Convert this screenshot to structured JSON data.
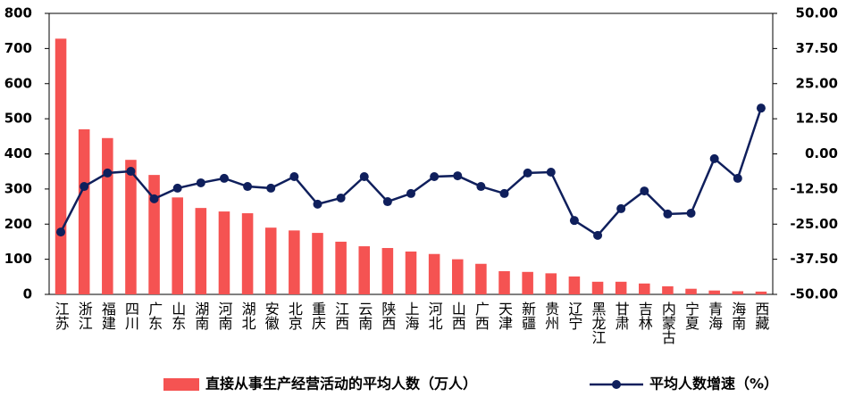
{
  "chart_data": {
    "type": "combo",
    "categories": [
      "江苏",
      "浙江",
      "福建",
      "四川",
      "广东",
      "山东",
      "湖南",
      "河南",
      "湖北",
      "安徽",
      "北京",
      "重庆",
      "江西",
      "云南",
      "陕西",
      "上海",
      "河北",
      "山西",
      "广西",
      "天津",
      "新疆",
      "贵州",
      "辽宁",
      "黑龙江",
      "甘肃",
      "吉林",
      "内蒙古",
      "宁夏",
      "青海",
      "海南",
      "西藏"
    ],
    "series": [
      {
        "name": "直接从事生产经营活动的平均人数（万人）",
        "type": "bar",
        "color": "#f55352",
        "values": [
          728,
          470,
          445,
          383,
          340,
          276,
          246,
          236,
          231,
          190,
          182,
          175,
          150,
          137,
          132,
          122,
          115,
          100,
          87,
          66,
          64,
          60,
          51,
          36,
          36,
          31,
          23,
          16,
          11,
          9,
          8
        ]
      },
      {
        "name": "平均人数增速（%）",
        "type": "line",
        "axis": "y2",
        "color": "#0f1f5c",
        "values": [
          -27.8,
          -11.6,
          -6.8,
          -6.2,
          -16.0,
          -12.2,
          -10.3,
          -8.7,
          -11.6,
          -12.2,
          -8.1,
          -17.9,
          -15.7,
          -8.1,
          -17.0,
          -14.1,
          -8.1,
          -7.8,
          -11.6,
          -14.1,
          -6.8,
          -6.5,
          -23.7,
          -29.0,
          -19.5,
          -13.2,
          -21.4,
          -21.1,
          -1.7,
          -8.7,
          16.3
        ]
      }
    ],
    "ylim": [
      0,
      800
    ],
    "yticks": [
      0,
      100,
      200,
      300,
      400,
      500,
      600,
      700,
      800
    ],
    "y2lim": [
      -50,
      50
    ],
    "y2ticks": [
      {
        "value": 50,
        "label": "50.00"
      },
      {
        "value": 37.5,
        "label": "37.50"
      },
      {
        "value": 25,
        "label": "25.00"
      },
      {
        "value": 12.5,
        "label": "12.50"
      },
      {
        "value": 0,
        "label": "0.00"
      },
      {
        "value": -12.5,
        "label": "-12.50"
      },
      {
        "value": -25,
        "label": "-25.00"
      },
      {
        "value": -37.5,
        "label": "-37.50"
      },
      {
        "value": -50,
        "label": "-50.00"
      }
    ],
    "legend": "bottom"
  }
}
